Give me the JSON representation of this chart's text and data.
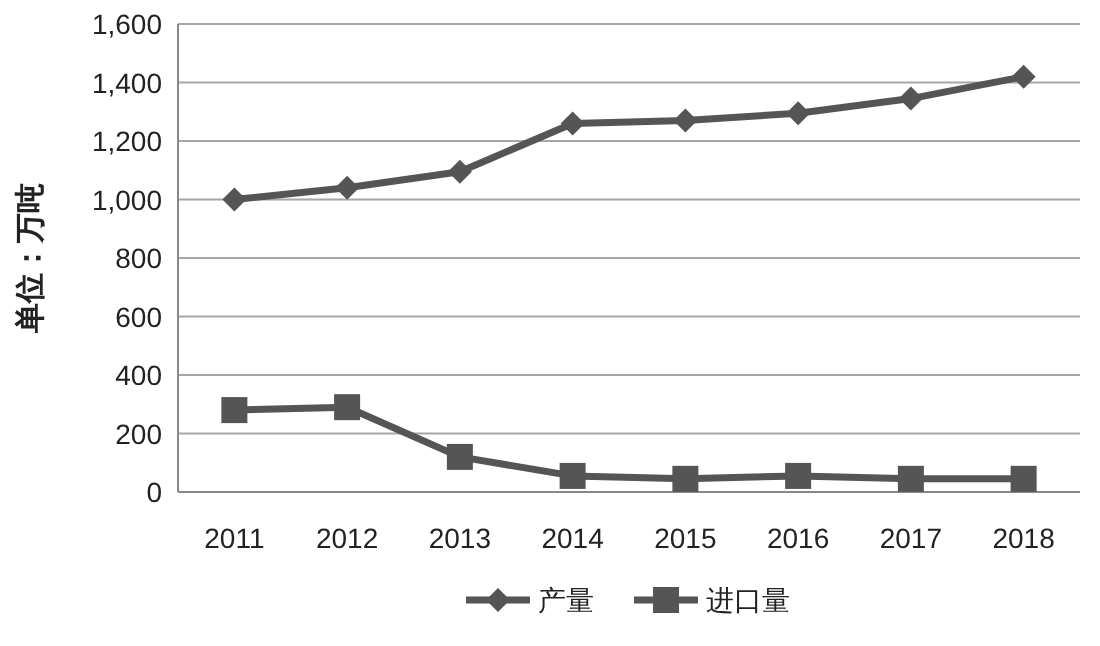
{
  "chart_data": {
    "type": "line",
    "ylabel": "单位：万吨",
    "categories": [
      "2011",
      "2012",
      "2013",
      "2014",
      "2015",
      "2016",
      "2017",
      "2018"
    ],
    "series": [
      {
        "name": "产量",
        "color": "#555555",
        "marker": "diamond",
        "values": [
          1000,
          1040,
          1095,
          1260,
          1270,
          1295,
          1345,
          1420
        ]
      },
      {
        "name": "进口量",
        "color": "#555555",
        "marker": "square",
        "values": [
          280,
          290,
          120,
          55,
          45,
          55,
          45,
          45
        ]
      }
    ],
    "ylim": [
      0,
      1600
    ],
    "yticks": [
      0,
      200,
      400,
      600,
      800,
      {
        "value": 1000,
        "label": "1,000"
      },
      {
        "value": 1200,
        "label": "1,200"
      },
      {
        "value": 1400,
        "label": "1,400"
      },
      {
        "value": 1600,
        "label": "1,600"
      }
    ],
    "grid": "y",
    "legend": "bottom"
  }
}
